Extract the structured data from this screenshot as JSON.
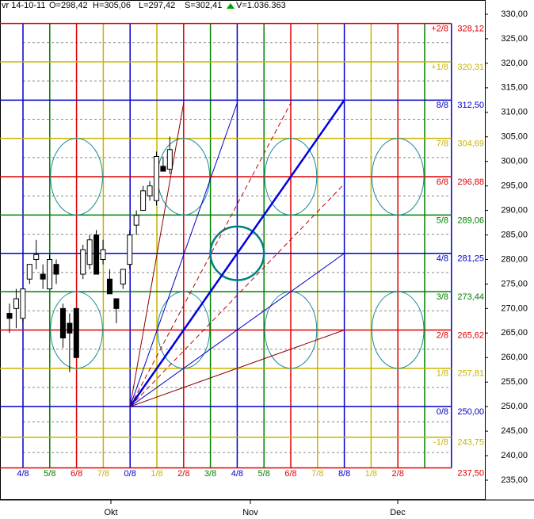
{
  "chart_data": {
    "type": "candlestick",
    "header": [
      "vr 14-10-11",
      "O=298,42",
      "H=305,06",
      "L=297,42",
      "S=302,41",
      "V=1.036.363"
    ],
    "ylim": [
      235,
      330
    ],
    "yticks": [
      {
        "value": 235,
        "label": "235,00"
      },
      {
        "value": 240,
        "label": "240,00"
      },
      {
        "value": 245,
        "label": "245,00"
      },
      {
        "value": 250,
        "label": "250,00"
      },
      {
        "value": 255,
        "label": "255,00"
      },
      {
        "value": 260,
        "label": "260,00"
      },
      {
        "value": 265,
        "label": "265,00"
      },
      {
        "value": 270,
        "label": "270,00"
      },
      {
        "value": 275,
        "label": "275,00"
      },
      {
        "value": 280,
        "label": "280,00"
      },
      {
        "value": 285,
        "label": "285,00"
      },
      {
        "value": 290,
        "label": "290,00"
      },
      {
        "value": 295,
        "label": "295,00"
      },
      {
        "value": 300,
        "label": "300,00"
      },
      {
        "value": 305,
        "label": "305,00"
      },
      {
        "value": 310,
        "label": "310,00"
      },
      {
        "value": 315,
        "label": "315,00"
      },
      {
        "value": 320,
        "label": "320,00"
      },
      {
        "value": 325,
        "label": "325,00"
      },
      {
        "value": 330,
        "label": "330,00"
      }
    ],
    "levels": [
      {
        "label": "+2/8",
        "value": 328.12,
        "value_label": "328,12",
        "color": "#e00000"
      },
      {
        "label": "+1/8",
        "value": 320.31,
        "value_label": "320,31",
        "color": "#c8b400"
      },
      {
        "label": "8/8",
        "value": 312.5,
        "value_label": "312,50",
        "color": "#0000c8"
      },
      {
        "label": "7/8",
        "value": 304.69,
        "value_label": "304,69",
        "color": "#c8b400"
      },
      {
        "label": "6/8",
        "value": 296.88,
        "value_label": "296,88",
        "color": "#e00000"
      },
      {
        "label": "5/8",
        "value": 289.06,
        "value_label": "289,06",
        "color": "#008000"
      },
      {
        "label": "4/8",
        "value": 281.25,
        "value_label": "281,25",
        "color": "#0000c8"
      },
      {
        "label": "3/8",
        "value": 273.44,
        "value_label": "273,44",
        "color": "#008000"
      },
      {
        "label": "2/8",
        "value": 265.62,
        "value_label": "265,62",
        "color": "#e00000"
      },
      {
        "label": "1/8",
        "value": 257.81,
        "value_label": "257,81",
        "color": "#c8b400"
      },
      {
        "label": "0/8",
        "value": 250,
        "value_label": "250,00",
        "color": "#0000c8"
      },
      {
        "label": "-1/8",
        "value": 243.75,
        "value_label": "243,75",
        "color": "#c8b400"
      },
      {
        "value": 237.5,
        "value_label": "237,50",
        "color": "#e00000"
      }
    ],
    "time_grid": [
      {
        "label": "4/8",
        "color": "#0000c8"
      },
      {
        "label": "5/8",
        "color": "#008000"
      },
      {
        "label": "6/8",
        "color": "#e00000"
      },
      {
        "label": "7/8",
        "color": "#c8b400"
      },
      {
        "label": "0/8",
        "color": "#0000c8"
      },
      {
        "label": "1/8",
        "color": "#c8b400"
      },
      {
        "label": "2/8",
        "color": "#e00000"
      },
      {
        "label": "3/8",
        "color": "#008000"
      },
      {
        "label": "4/8",
        "color": "#0000c8"
      },
      {
        "label": "5/8",
        "color": "#008000"
      },
      {
        "label": "6/8",
        "color": "#e00000"
      },
      {
        "label": "7/8",
        "color": "#c8b400"
      },
      {
        "label": "8/8",
        "color": "#0000c8"
      },
      {
        "label": "1/8",
        "color": "#c8b400"
      },
      {
        "label": "2/8",
        "color": "#e00000"
      },
      {
        "label": null,
        "color": "#008000"
      },
      {
        "label": null,
        "color": "#0000c8"
      }
    ],
    "months": [
      "Okt",
      "Nov",
      "Dec"
    ],
    "open": [
      269,
      270,
      268,
      276,
      280,
      277,
      274,
      279,
      270,
      267,
      270,
      277,
      279,
      285,
      280,
      276,
      272,
      275,
      279,
      287,
      290,
      293,
      292,
      299,
      298.42
    ],
    "high": [
      271,
      274,
      274,
      279,
      284,
      279,
      281,
      280,
      271,
      269,
      270,
      283,
      285,
      286,
      284,
      278,
      272,
      278,
      286,
      290,
      295,
      296,
      302,
      301,
      305.06
    ],
    "low": [
      265,
      266,
      267,
      275,
      278,
      274,
      274,
      275,
      262,
      257,
      260,
      276,
      278,
      277,
      279,
      273,
      267,
      274,
      278,
      285,
      290,
      292,
      291,
      298,
      297.42
    ],
    "close": [
      268,
      272,
      274,
      279,
      281,
      276,
      280,
      277,
      264,
      265,
      260,
      282,
      284,
      277,
      282,
      273,
      270,
      278,
      285,
      289,
      294,
      295,
      301,
      298,
      302.41
    ]
  }
}
